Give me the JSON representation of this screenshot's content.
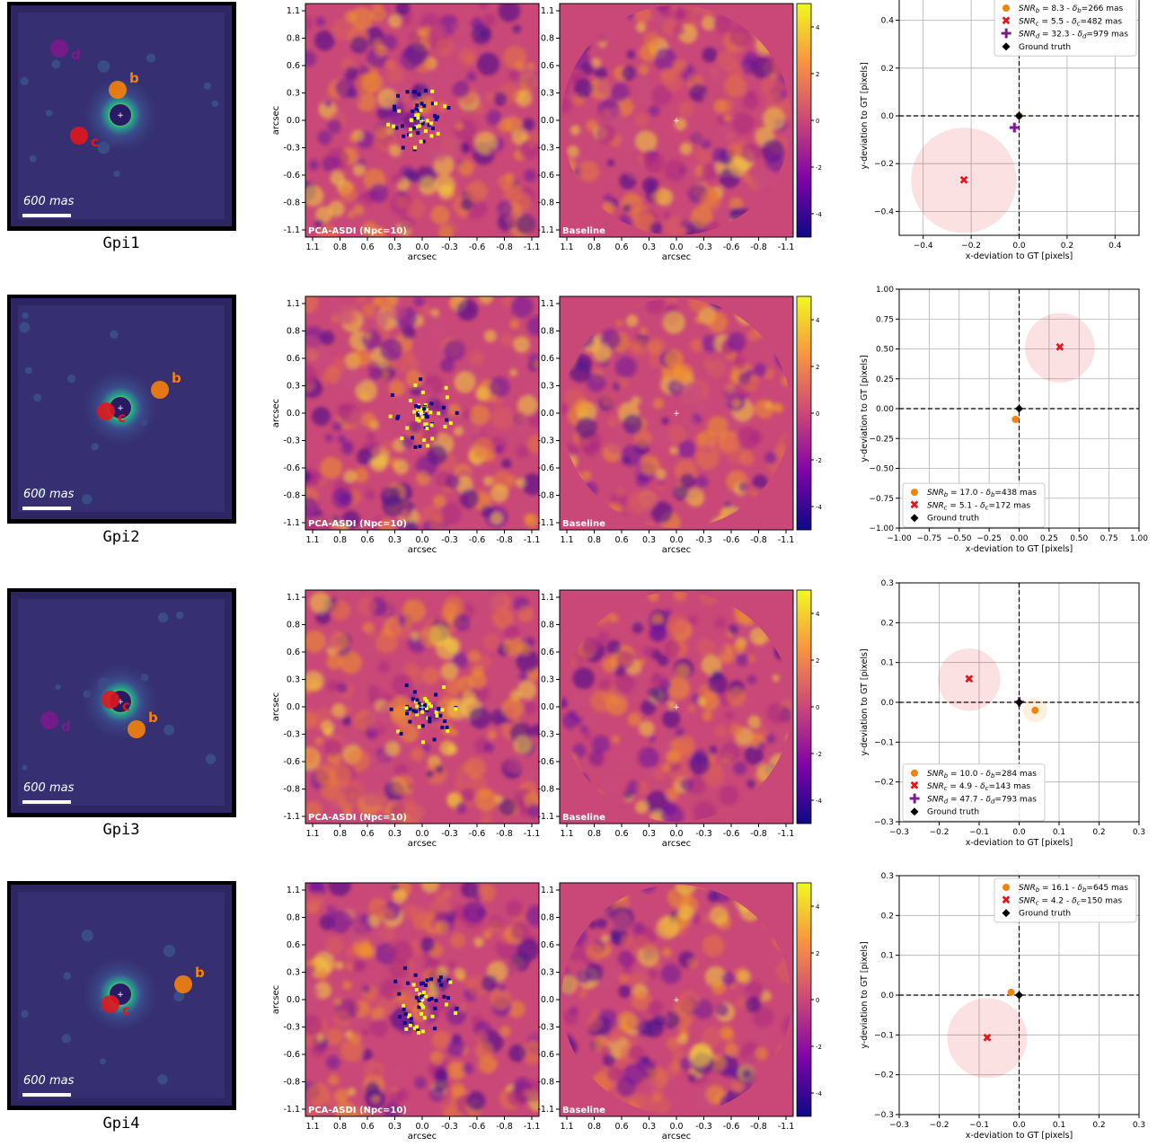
{
  "common": {
    "axis_label_arcsec": "arcsec",
    "arcsec_ticks": [
      "1.1",
      "0.8",
      "0.6",
      "0.3",
      "0.0",
      "-0.3",
      "-0.6",
      "-0.8",
      "-1.1"
    ],
    "cbar_ticks": [
      "4",
      "2",
      "0",
      "-2",
      "-4"
    ],
    "pca_label": "PCA-ASDI (Npc=10)",
    "baseline_label": "Baseline",
    "scalebar_label": "600 mas",
    "xlabel_dev": "x-deviation to GT [pixels]",
    "ylabel_dev": "y-deviation to GT [pixels]",
    "colors": {
      "b": "#f5820a",
      "c": "#e0171d",
      "d": "#7b1a8c",
      "gt": "#000000",
      "bg_resid": "#c94877",
      "raw_bg": "#2e2563"
    }
  },
  "rows": [
    {
      "dataset": "Gpi1",
      "raw": {
        "companions": [
          {
            "label": "b",
            "color": "#f5820a"
          },
          {
            "label": "c",
            "color": "#e0171d"
          },
          {
            "label": "d",
            "color": "#7b1a8c"
          }
        ]
      },
      "chart_data": {
        "type": "scatter",
        "xlim": [
          -0.5,
          0.5
        ],
        "ylim": [
          -0.5,
          0.5
        ],
        "xticks": [
          "−0.4",
          "−0.2",
          "0.0",
          "0.2",
          "0.4"
        ],
        "xtick_values": [
          -0.4,
          -0.2,
          0.0,
          0.2,
          0.4
        ],
        "yticks": [
          "0.4",
          "0.2",
          "0.0",
          "−0.2",
          "−0.4"
        ],
        "ytick_values": [
          0.4,
          0.2,
          0.0,
          -0.2,
          -0.4
        ],
        "legend_position": "upper-right",
        "series": [
          {
            "name": "SNR_b = 8.3 - δ_b=266 mas",
            "sub": "b",
            "snr": "8.3",
            "dist": "266",
            "marker": "circle",
            "color": "#f5820a",
            "x": 0.0,
            "y": 0.0,
            "radius": 0.0
          },
          {
            "name": "SNR_c = 5.5 - δ_c=482 mas",
            "sub": "c",
            "snr": "5.5",
            "dist": "482",
            "marker": "x",
            "color": "#e0171d",
            "x": -0.23,
            "y": -0.27,
            "radius": 0.22
          },
          {
            "name": "SNR_d = 32.3 - δ_d=979 mas",
            "sub": "d",
            "snr": "32.3",
            "dist": "979",
            "marker": "plus",
            "color": "#7b1a8c",
            "x": -0.02,
            "y": -0.05,
            "radius": 0.02
          },
          {
            "name": "Ground truth",
            "marker": "diamond",
            "color": "#000000",
            "x": 0.0,
            "y": 0.0,
            "radius": 0.0
          }
        ]
      }
    },
    {
      "dataset": "Gpi2",
      "raw": {
        "companions": [
          {
            "label": "b",
            "color": "#f5820a"
          },
          {
            "label": "c",
            "color": "#e0171d"
          }
        ]
      },
      "chart_data": {
        "type": "scatter",
        "xlim": [
          -1.0,
          1.0
        ],
        "ylim": [
          -1.0,
          1.0
        ],
        "xticks": [
          "−1.00",
          "−0.75",
          "−0.50",
          "−0.25",
          "0.00",
          "0.25",
          "0.50",
          "0.75",
          "1.00"
        ],
        "xtick_values": [
          -1,
          -0.75,
          -0.5,
          -0.25,
          0,
          0.25,
          0.5,
          0.75,
          1
        ],
        "yticks": [
          "1.00",
          "0.75",
          "0.50",
          "0.25",
          "0.00",
          "−0.25",
          "−0.50",
          "−0.75",
          "−1.00"
        ],
        "ytick_values": [
          1,
          0.75,
          0.5,
          0.25,
          0,
          -0.25,
          -0.5,
          -0.75,
          -1
        ],
        "legend_position": "lower-left",
        "series": [
          {
            "name": "SNR_b = 17.0 - δ_b=438 mas",
            "sub": "b",
            "snr": "17.0",
            "dist": "438",
            "marker": "circle",
            "color": "#f5820a",
            "x": -0.03,
            "y": -0.09,
            "radius": 0.04
          },
          {
            "name": "SNR_c = 5.1 - δ_c=172 mas",
            "sub": "c",
            "snr": "5.1",
            "dist": "172",
            "marker": "x",
            "color": "#e0171d",
            "x": 0.34,
            "y": 0.51,
            "radius": 0.29
          },
          {
            "name": "Ground truth",
            "marker": "diamond",
            "color": "#000000",
            "x": 0.0,
            "y": 0.0,
            "radius": 0.0
          }
        ]
      }
    },
    {
      "dataset": "Gpi3",
      "raw": {
        "companions": [
          {
            "label": "b",
            "color": "#f5820a"
          },
          {
            "label": "c",
            "color": "#e0171d"
          },
          {
            "label": "d",
            "color": "#7b1a8c"
          }
        ]
      },
      "chart_data": {
        "type": "scatter",
        "xlim": [
          -0.3,
          0.3
        ],
        "ylim": [
          -0.3,
          0.3
        ],
        "xticks": [
          "−0.3",
          "−0.2",
          "−0.1",
          "0.0",
          "0.1",
          "0.2",
          "0.3"
        ],
        "xtick_values": [
          -0.3,
          -0.2,
          -0.1,
          0,
          0.1,
          0.2,
          0.3
        ],
        "yticks": [
          "0.3",
          "0.2",
          "0.1",
          "0.0",
          "−0.1",
          "−0.2",
          "−0.3"
        ],
        "ytick_values": [
          0.3,
          0.2,
          0.1,
          0,
          -0.1,
          -0.2,
          -0.3
        ],
        "legend_position": "lower-left",
        "series": [
          {
            "name": "SNR_b = 10.0 - δ_b=284 mas",
            "sub": "b",
            "snr": "10.0",
            "dist": "284",
            "marker": "circle",
            "color": "#f5820a",
            "x": 0.04,
            "y": -0.02,
            "radius": 0.03
          },
          {
            "name": "SNR_c = 4.9 - δ_c=143 mas",
            "sub": "c",
            "snr": "4.9",
            "dist": "143",
            "marker": "x",
            "color": "#e0171d",
            "x": -0.125,
            "y": 0.057,
            "radius": 0.078
          },
          {
            "name": "SNR_d = 47.7 - δ_d=793 mas",
            "sub": "d",
            "snr": "47.7",
            "dist": "793",
            "marker": "plus",
            "color": "#7b1a8c",
            "x": 0.0,
            "y": 0.0,
            "radius": 0.0
          },
          {
            "name": "Ground truth",
            "marker": "diamond",
            "color": "#000000",
            "x": 0.0,
            "y": 0.0,
            "radius": 0.0
          }
        ]
      }
    },
    {
      "dataset": "Gpi4",
      "raw": {
        "companions": [
          {
            "label": "b",
            "color": "#f5820a"
          },
          {
            "label": "c",
            "color": "#e0171d"
          }
        ]
      },
      "chart_data": {
        "type": "scatter",
        "xlim": [
          -0.3,
          0.3
        ],
        "ylim": [
          -0.3,
          0.3
        ],
        "xticks": [
          "−0.3",
          "−0.2",
          "−0.1",
          "0.0",
          "0.1",
          "0.2",
          "0.3"
        ],
        "xtick_values": [
          -0.3,
          -0.2,
          -0.1,
          0,
          0.1,
          0.2,
          0.3
        ],
        "yticks": [
          "0.3",
          "0.2",
          "0.1",
          "0.0",
          "−0.1",
          "−0.2",
          "−0.3"
        ],
        "ytick_values": [
          0.3,
          0.2,
          0.1,
          0,
          -0.1,
          -0.2,
          -0.3
        ],
        "legend_position": "upper-right",
        "series": [
          {
            "name": "SNR_b = 16.1 - δ_b=645 mas",
            "sub": "b",
            "snr": "16.1",
            "dist": "645",
            "marker": "circle",
            "color": "#f5820a",
            "x": -0.02,
            "y": 0.007,
            "radius": 0.0
          },
          {
            "name": "SNR_c = 4.2 - δ_c=150 mas",
            "sub": "c",
            "snr": "4.2",
            "dist": "150",
            "marker": "x",
            "color": "#e0171d",
            "x": -0.08,
            "y": -0.108,
            "radius": 0.1
          },
          {
            "name": "Ground truth",
            "marker": "diamond",
            "color": "#000000",
            "x": 0.0,
            "y": 0.0,
            "radius": 0.0
          }
        ]
      }
    }
  ]
}
